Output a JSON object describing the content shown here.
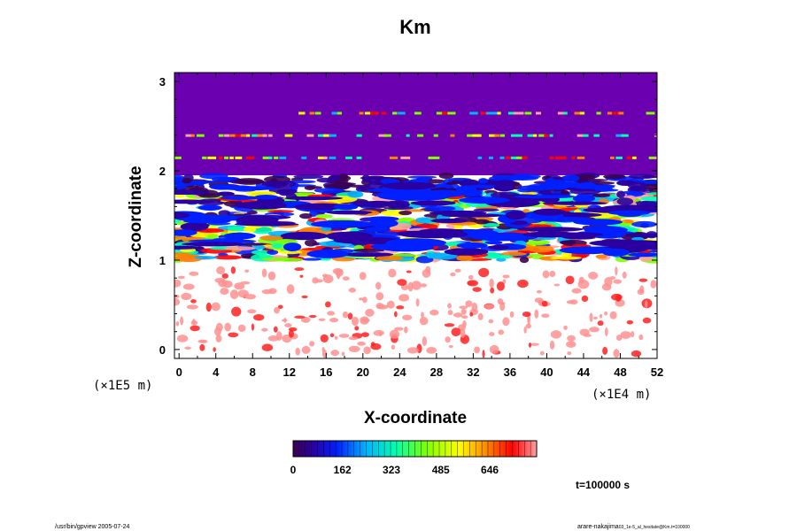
{
  "chart_data": {
    "type": "heatmap",
    "title": "Km",
    "xlabel": "X-coordinate",
    "ylabel": "Z-coordinate",
    "x_unit": "(×1E4 m)",
    "y_unit": "(×1E5 m)",
    "xlim": [
      -0.5,
      52
    ],
    "ylim": [
      -0.1,
      3.1
    ],
    "x_ticks": [
      "0",
      "4",
      "8",
      "12",
      "16",
      "20",
      "24",
      "28",
      "32",
      "36",
      "40",
      "44",
      "48",
      "52"
    ],
    "y_ticks": [
      "0",
      "1",
      "2",
      "3"
    ],
    "colorbar": {
      "min": 0,
      "max": 800,
      "tick_labels": [
        "0",
        "162",
        "323",
        "485",
        "646"
      ],
      "tick_values": [
        0,
        162,
        323,
        485,
        646
      ]
    },
    "field_description": "low values above z≈2, highly variable banded structure between z≈1 and z≈2, high values below z≈1"
  },
  "time_label": "t=100000 s",
  "footer_left": "/usr/bin/gpview 2005-07-24",
  "footer_right_main": "arare-nakajima",
  "footer_right_sub": "03_1e-5_al_hesitate@Km.t=100000"
}
